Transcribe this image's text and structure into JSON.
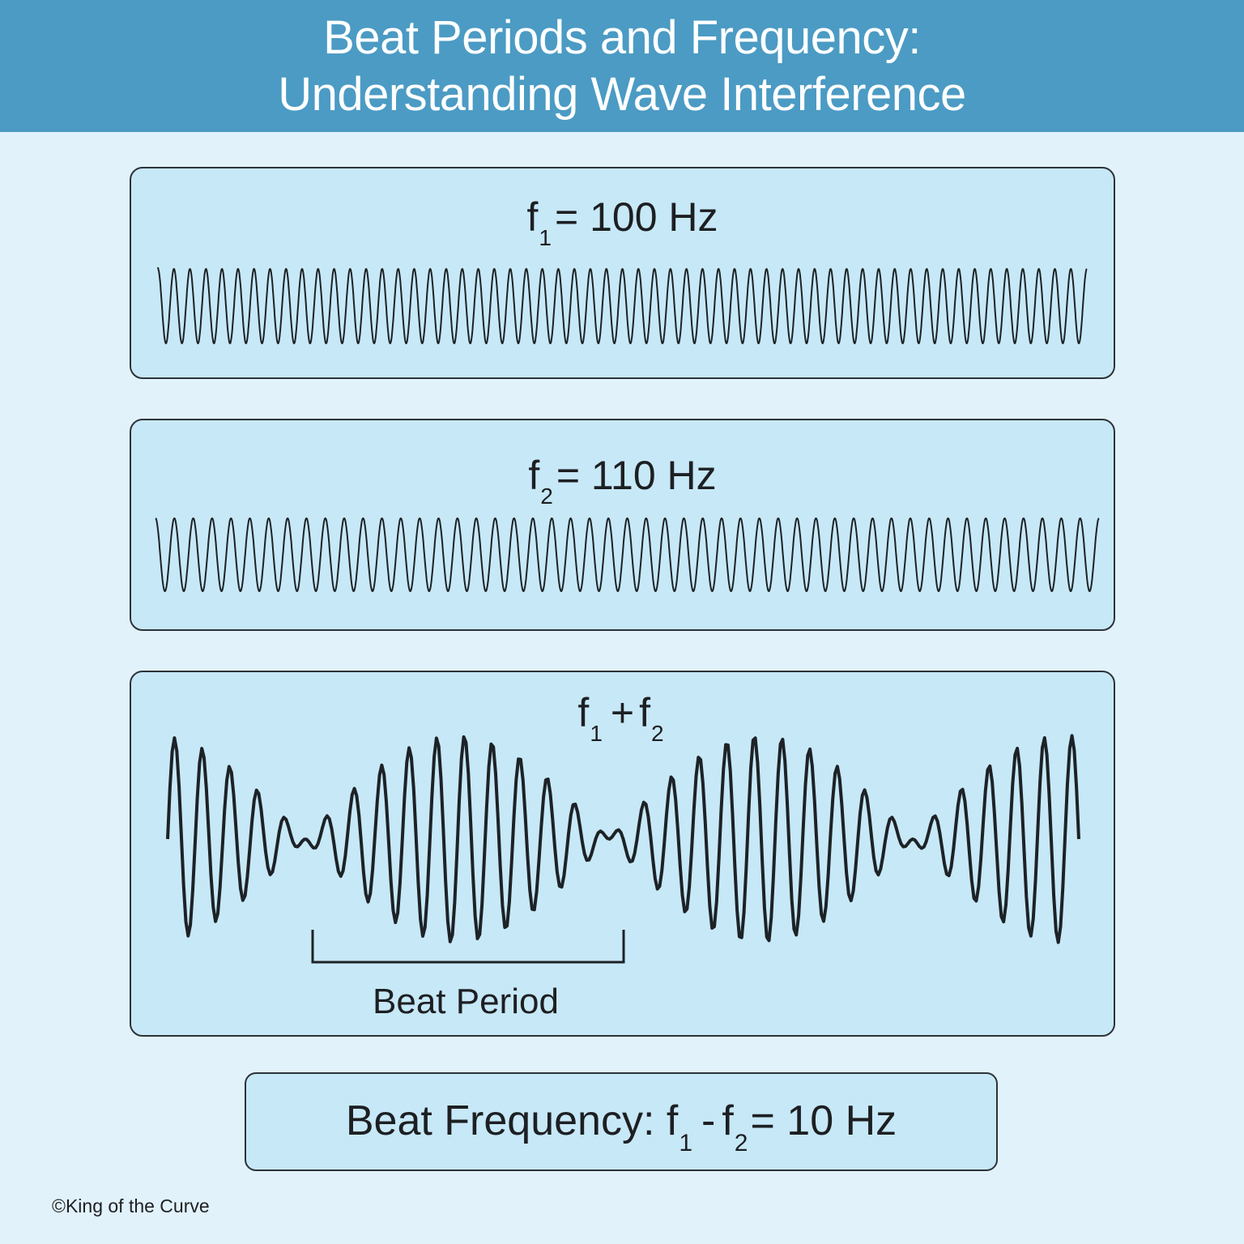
{
  "header": {
    "title_line1": "Beat Periods and Frequency:",
    "title_line2": "Understanding Wave Interference",
    "background": "#4b9bc4"
  },
  "panels": {
    "wave1": {
      "symbol": "f",
      "subscript": "1",
      "equals": "= 100 Hz",
      "frequency_hz": 100,
      "cycles_shown": 58
    },
    "wave2": {
      "symbol": "f",
      "subscript": "2",
      "equals": "= 110 Hz",
      "frequency_hz": 110,
      "cycles_shown": 50
    },
    "sum": {
      "symbol1": "f",
      "sub1": "1",
      "plus": "+",
      "symbol2": "f",
      "sub2": "2",
      "beat_period_label": "Beat Period"
    }
  },
  "beat_frequency": {
    "prefix": "Beat Frequency:",
    "symbol1": "f",
    "sub1": "1",
    "minus": "-",
    "symbol2": "f",
    "sub2": "2",
    "result": "= 10 Hz"
  },
  "footer": {
    "copyright": "©King of the Curve"
  },
  "colors": {
    "page_background": "#e2f2fb",
    "panel_fill": "#c7e8f7",
    "panel_border": "#2c3338",
    "wave_stroke": "#1d2226",
    "header_text": "#ffffff"
  }
}
